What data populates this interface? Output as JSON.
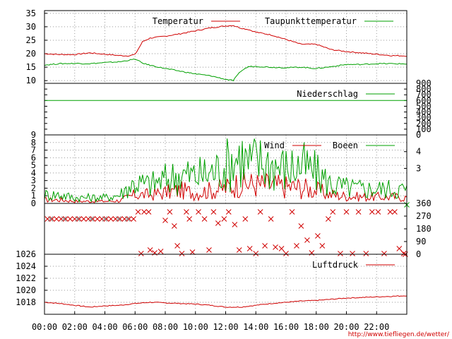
{
  "url_label": "http://www.tiefliegen.de/wetter/",
  "chart_data": [
    {
      "type": "line",
      "panel": "temperature",
      "ylim": [
        9,
        36
      ],
      "y_ticks": [
        10,
        15,
        20,
        25,
        30,
        35
      ],
      "grid": true,
      "legend_position": "top",
      "x_hours": [
        0,
        1,
        2,
        3,
        4,
        5,
        5.5,
        6,
        6.5,
        7,
        8,
        9,
        10,
        11,
        12,
        12.5,
        13,
        13.5,
        14,
        15,
        16,
        17,
        18,
        19,
        20,
        21,
        22,
        23,
        24
      ],
      "series": [
        {
          "name": "Temperatur",
          "color": "#d00000",
          "values": [
            20,
            19.7,
            19.7,
            20.3,
            19.8,
            19.3,
            19.2,
            19.7,
            24.5,
            25.8,
            26.5,
            27.4,
            28.5,
            29.6,
            30.3,
            30.5,
            29.5,
            29,
            28,
            27,
            25.3,
            23.5,
            23.5,
            21.5,
            20.8,
            20.3,
            19.8,
            19.3,
            19.2
          ]
        },
        {
          "name": "Taupunkttemperatur",
          "color": "#00a000",
          "values": [
            15.8,
            16.3,
            16.4,
            16.3,
            16.7,
            17,
            17.5,
            18,
            16.5,
            15.7,
            14.5,
            13.5,
            12.5,
            11.8,
            10.5,
            10,
            13.5,
            15.2,
            15.3,
            15,
            14.8,
            15,
            14.5,
            15.2,
            16,
            16,
            16.3,
            16.3,
            16.2
          ]
        }
      ]
    },
    {
      "type": "line",
      "panel": "precipitation",
      "ylim": [
        0,
        900
      ],
      "y_ticks": [
        0,
        100,
        200,
        300,
        400,
        500,
        600,
        700,
        800,
        900
      ],
      "legend_position": "top-right",
      "series": [
        {
          "name": "Niederschlag",
          "color": "#00a000",
          "constant_value": 600
        }
      ]
    },
    {
      "type": "line",
      "panel": "wind",
      "ylim": [
        0,
        9
      ],
      "y_ticks": [
        0,
        1,
        2,
        3,
        4,
        5,
        6,
        7,
        8,
        9
      ],
      "y2_ticks": [
        3,
        4
      ],
      "grid": true,
      "legend_position": "top",
      "x_hours": [
        0,
        1,
        2,
        3,
        4,
        5,
        5.5,
        6,
        7,
        8,
        9,
        10,
        11,
        12,
        12.5,
        13,
        13.5,
        14,
        15,
        16,
        17,
        18,
        19,
        20,
        21,
        22,
        23,
        24
      ],
      "series": [
        {
          "name": "Wind",
          "color": "#d00000",
          "values": [
            0.5,
            0.5,
            0.3,
            0.3,
            0.3,
            0.4,
            0.8,
            1.2,
            1.2,
            1.5,
            1.8,
            1.5,
            1.8,
            2.1,
            2.5,
            2.8,
            2.7,
            2.6,
            2.5,
            2.3,
            2.2,
            1.8,
            1.2,
            1,
            0.9,
            0.9,
            0.9,
            0.8
          ]
        },
        {
          "name": "Boeen",
          "color": "#00a000",
          "values": [
            1.2,
            1.2,
            0.8,
            0.8,
            0.8,
            1.2,
            2.2,
            2.8,
            2.6,
            3.3,
            4,
            3.8,
            4.2,
            5.2,
            6.2,
            6.6,
            5.5,
            5.8,
            5.5,
            4.8,
            5.2,
            4.2,
            2.6,
            2.2,
            2,
            2,
            2,
            1.9
          ]
        }
      ]
    },
    {
      "type": "scatter",
      "panel": "wind-direction",
      "ylim": [
        0,
        360
      ],
      "y2_ticks": [
        0,
        90,
        180,
        270,
        360
      ],
      "marker": "x",
      "points": [
        {
          "x": 0.2,
          "y": 250,
          "color": "#d00000"
        },
        {
          "x": 0.5,
          "y": 250,
          "color": "#d00000"
        },
        {
          "x": 0.8,
          "y": 250,
          "color": "#d00000"
        },
        {
          "x": 1.1,
          "y": 250,
          "color": "#d00000"
        },
        {
          "x": 1.4,
          "y": 250,
          "color": "#d00000"
        },
        {
          "x": 1.7,
          "y": 250,
          "color": "#d00000"
        },
        {
          "x": 2.0,
          "y": 250,
          "color": "#d00000"
        },
        {
          "x": 2.3,
          "y": 250,
          "color": "#d00000"
        },
        {
          "x": 2.6,
          "y": 250,
          "color": "#d00000"
        },
        {
          "x": 2.9,
          "y": 250,
          "color": "#d00000"
        },
        {
          "x": 3.2,
          "y": 250,
          "color": "#d00000"
        },
        {
          "x": 3.5,
          "y": 250,
          "color": "#d00000"
        },
        {
          "x": 3.8,
          "y": 250,
          "color": "#d00000"
        },
        {
          "x": 4.1,
          "y": 250,
          "color": "#d00000"
        },
        {
          "x": 4.4,
          "y": 250,
          "color": "#d00000"
        },
        {
          "x": 4.7,
          "y": 250,
          "color": "#d00000"
        },
        {
          "x": 5.0,
          "y": 250,
          "color": "#d00000"
        },
        {
          "x": 5.3,
          "y": 250,
          "color": "#d00000"
        },
        {
          "x": 5.6,
          "y": 250,
          "color": "#d00000"
        },
        {
          "x": 5.9,
          "y": 250,
          "color": "#d00000"
        },
        {
          "x": 0.4,
          "y": 250,
          "color": "#888888"
        },
        {
          "x": 1.3,
          "y": 250,
          "color": "#888888"
        },
        {
          "x": 2.2,
          "y": 250,
          "color": "#888888"
        },
        {
          "x": 3.1,
          "y": 250,
          "color": "#888888"
        },
        {
          "x": 4.0,
          "y": 250,
          "color": "#888888"
        },
        {
          "x": 4.9,
          "y": 250,
          "color": "#888888"
        },
        {
          "x": 5.5,
          "y": 250,
          "color": "#888888"
        },
        {
          "x": 6.2,
          "y": 300,
          "color": "#d00000"
        },
        {
          "x": 6.6,
          "y": 300,
          "color": "#d00000"
        },
        {
          "x": 6.9,
          "y": 300,
          "color": "#d00000"
        },
        {
          "x": 6.4,
          "y": 5,
          "color": "#d00000"
        },
        {
          "x": 7.0,
          "y": 30,
          "color": "#d00000"
        },
        {
          "x": 7.3,
          "y": 10,
          "color": "#d00000"
        },
        {
          "x": 7.7,
          "y": 20,
          "color": "#d00000"
        },
        {
          "x": 8.0,
          "y": 240,
          "color": "#d00000"
        },
        {
          "x": 8.3,
          "y": 300,
          "color": "#d00000"
        },
        {
          "x": 8.6,
          "y": 200,
          "color": "#d00000"
        },
        {
          "x": 8.8,
          "y": 60,
          "color": "#d00000"
        },
        {
          "x": 9.1,
          "y": 5,
          "color": "#d00000"
        },
        {
          "x": 9.4,
          "y": 300,
          "color": "#d00000"
        },
        {
          "x": 9.6,
          "y": 250,
          "color": "#d00000"
        },
        {
          "x": 9.8,
          "y": 15,
          "color": "#d00000"
        },
        {
          "x": 10.2,
          "y": 300,
          "color": "#d00000"
        },
        {
          "x": 10.6,
          "y": 250,
          "color": "#d00000"
        },
        {
          "x": 10.9,
          "y": 30,
          "color": "#d00000"
        },
        {
          "x": 11.2,
          "y": 300,
          "color": "#d00000"
        },
        {
          "x": 11.5,
          "y": 220,
          "color": "#d00000"
        },
        {
          "x": 11.9,
          "y": 250,
          "color": "#d00000"
        },
        {
          "x": 12.2,
          "y": 300,
          "color": "#d00000"
        },
        {
          "x": 12.6,
          "y": 210,
          "color": "#d00000"
        },
        {
          "x": 12.9,
          "y": 30,
          "color": "#d00000"
        },
        {
          "x": 13.3,
          "y": 250,
          "color": "#d00000"
        },
        {
          "x": 13.6,
          "y": 40,
          "color": "#d00000"
        },
        {
          "x": 14.0,
          "y": 5,
          "color": "#d00000"
        },
        {
          "x": 14.3,
          "y": 300,
          "color": "#d00000"
        },
        {
          "x": 14.6,
          "y": 60,
          "color": "#d00000"
        },
        {
          "x": 15.0,
          "y": 250,
          "color": "#d00000"
        },
        {
          "x": 15.3,
          "y": 50,
          "color": "#d00000"
        },
        {
          "x": 15.7,
          "y": 40,
          "color": "#d00000"
        },
        {
          "x": 16.0,
          "y": 5,
          "color": "#d00000"
        },
        {
          "x": 16.4,
          "y": 300,
          "color": "#d00000"
        },
        {
          "x": 16.7,
          "y": 60,
          "color": "#d00000"
        },
        {
          "x": 17.0,
          "y": 200,
          "color": "#d00000"
        },
        {
          "x": 17.4,
          "y": 100,
          "color": "#d00000"
        },
        {
          "x": 17.7,
          "y": 10,
          "color": "#d00000"
        },
        {
          "x": 18.1,
          "y": 130,
          "color": "#d00000"
        },
        {
          "x": 18.4,
          "y": 60,
          "color": "#d00000"
        },
        {
          "x": 18.8,
          "y": 250,
          "color": "#d00000"
        },
        {
          "x": 19.1,
          "y": 300,
          "color": "#d00000"
        },
        {
          "x": 19.6,
          "y": 5,
          "color": "#d00000"
        },
        {
          "x": 20.0,
          "y": 300,
          "color": "#d00000"
        },
        {
          "x": 20.4,
          "y": 5,
          "color": "#d00000"
        },
        {
          "x": 20.8,
          "y": 300,
          "color": "#d00000"
        },
        {
          "x": 21.3,
          "y": 5,
          "color": "#d00000"
        },
        {
          "x": 21.7,
          "y": 300,
          "color": "#d00000"
        },
        {
          "x": 22.1,
          "y": 300,
          "color": "#d00000"
        },
        {
          "x": 22.5,
          "y": 5,
          "color": "#d00000"
        },
        {
          "x": 22.9,
          "y": 300,
          "color": "#d00000"
        },
        {
          "x": 23.2,
          "y": 300,
          "color": "#d00000"
        },
        {
          "x": 23.5,
          "y": 40,
          "color": "#d00000"
        },
        {
          "x": 23.8,
          "y": 5,
          "color": "#d00000"
        },
        {
          "x": 24.0,
          "y": 350,
          "color": "#00a000"
        },
        {
          "x": 23.9,
          "y": 0,
          "color": "#d00000"
        }
      ]
    },
    {
      "type": "line",
      "panel": "pressure",
      "ylim": [
        1016,
        1026
      ],
      "y_ticks": [
        1018,
        1020,
        1022,
        1024,
        1026
      ],
      "grid": true,
      "legend_position": "top-right",
      "x_hours": [
        0,
        1,
        2,
        3,
        4,
        5,
        6,
        7,
        8,
        9,
        10,
        11,
        12,
        13,
        14,
        15,
        16,
        17,
        18,
        19,
        20,
        21,
        22,
        23,
        24
      ],
      "series": [
        {
          "name": "Luftdruck",
          "color": "#d00000",
          "values": [
            1018,
            1017.8,
            1017.5,
            1017.2,
            1017.4,
            1017.5,
            1017.8,
            1018,
            1017.9,
            1017.8,
            1017.7,
            1017.5,
            1017.2,
            1017.2,
            1017.5,
            1017.8,
            1018,
            1018.2,
            1018.3,
            1018.5,
            1018.7,
            1018.8,
            1018.9,
            1019,
            1019.1
          ]
        }
      ]
    }
  ],
  "x_axis": {
    "range_hours": [
      0,
      24
    ],
    "tick_labels": [
      "00:00",
      "02:00",
      "04:00",
      "06:00",
      "08:00",
      "10:00",
      "12:00",
      "14:00",
      "16:00",
      "18:00",
      "20:00",
      "22:00"
    ]
  },
  "colors": {
    "red": "#d00000",
    "green": "#00a000",
    "gray": "#888888"
  }
}
